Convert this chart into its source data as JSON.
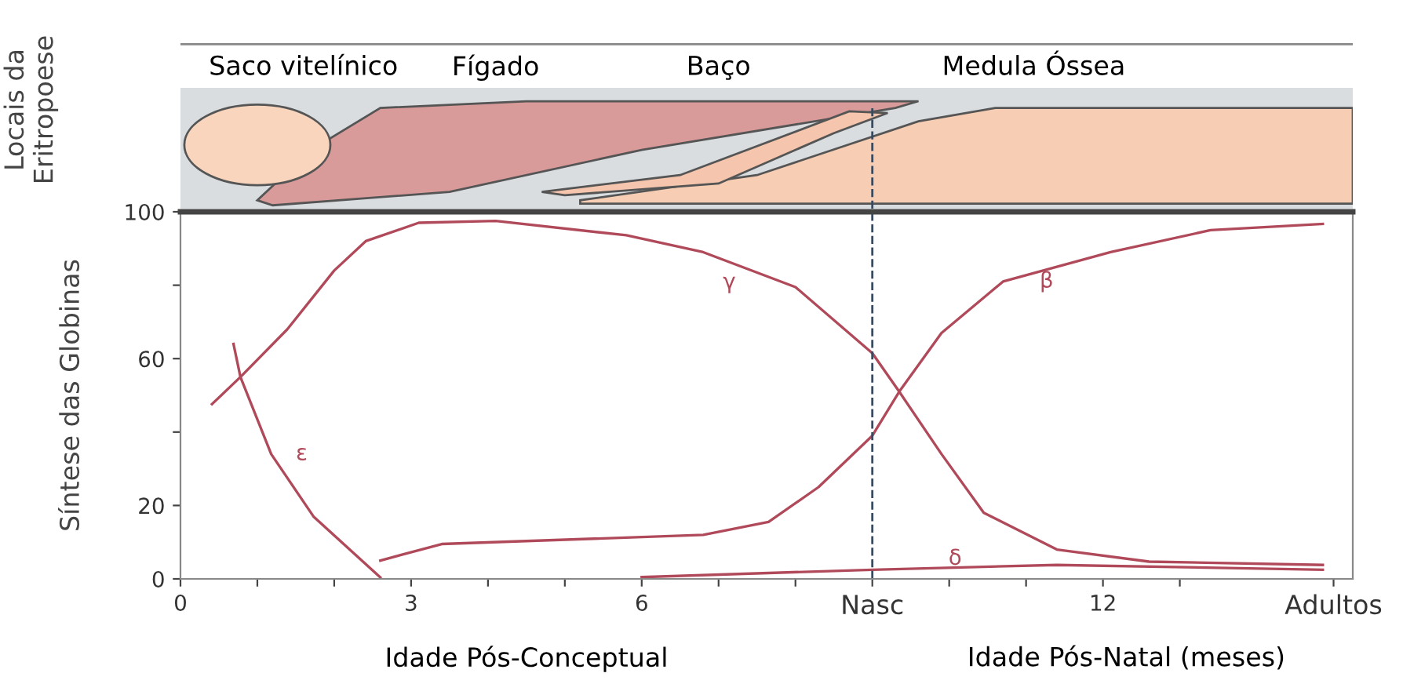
{
  "chart_data": [
    {
      "type": "other",
      "ylabel": "Locais da\nEritropoese",
      "annotations": [
        "Saco vitelínico",
        "Fígado",
        "Baço",
        "Medula Óssea"
      ]
    },
    {
      "type": "line",
      "ylabel": "Síntese das Globinas",
      "xlabel": "Idade Pós-Conceptual",
      "xlim": [
        0,
        15.25
      ],
      "ylim": [
        0,
        100
      ],
      "xticks": [
        0,
        {
          "value": 1,
          "label": null
        },
        {
          "value": 2,
          "label": null
        },
        3,
        {
          "value": 4,
          "label": null
        },
        {
          "value": 5,
          "label": null
        },
        6,
        {
          "value": 7,
          "label": null
        },
        {
          "value": 8,
          "label": null
        },
        {
          "value": 9,
          "label": "Nasc"
        },
        {
          "value": 10,
          "label": null
        },
        {
          "value": 11,
          "label": null
        },
        12,
        {
          "value": 13,
          "label": null
        },
        {
          "value": 15,
          "label": "Adultos"
        }
      ],
      "yticks": [
        0,
        20,
        {
          "value": 40,
          "label": null
        },
        60,
        {
          "value": 80,
          "label": null
        },
        100
      ],
      "series": [
        {
          "name": "γ",
          "color": "#b04a5a",
          "x": [
            0.41,
            0.78,
            1.39,
            2.0,
            2.41,
            3.1,
            4.1,
            5.8,
            6.8,
            8.0,
            9.0,
            9.35,
            9.9,
            10.45,
            11.4,
            12.6,
            14.86
          ],
          "values": [
            47.6,
            55,
            68,
            84,
            92,
            97,
            97.5,
            93.6,
            89,
            79.5,
            61.5,
            51,
            34,
            18,
            8,
            4.7,
            3.8
          ]
        },
        {
          "name": "ε",
          "color": "#b04a5a",
          "x": [
            0.69,
            0.78,
            1.18,
            1.73,
            2.6
          ],
          "values": [
            64,
            55,
            34,
            17,
            0.4
          ]
        },
        {
          "name": "β",
          "color": "#b04a5a",
          "x": [
            2.6,
            3.4,
            6.8,
            7.65,
            8.3,
            9.0,
            9.35,
            9.9,
            10.7,
            12.1,
            13.4,
            14.86
          ],
          "values": [
            5,
            9.5,
            12,
            15.5,
            25,
            39,
            51,
            67,
            81,
            89,
            95,
            96.7
          ]
        },
        {
          "name": "δ",
          "color": "#b04a5a",
          "x": [
            6.0,
            9.0,
            11.4,
            14.86
          ],
          "values": [
            0.5,
            2.5,
            3.8,
            2.5
          ]
        }
      ],
      "ref_lines": [
        {
          "axis": "x",
          "value": 9,
          "color": "#3a4a5e",
          "line_style": "dashed"
        }
      ],
      "annotations": [
        "Idade Pós-Natal (meses)"
      ],
      "grid": false,
      "legend": false,
      "marker": "none",
      "line_style": "solid"
    }
  ]
}
